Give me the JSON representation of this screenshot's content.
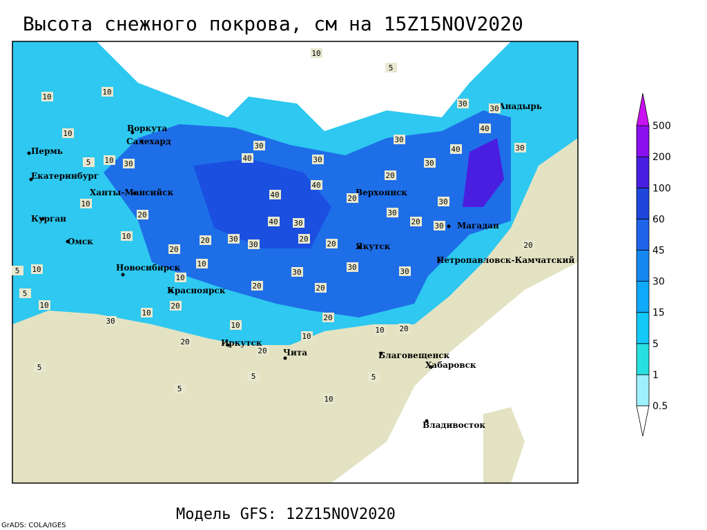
{
  "title": "Высота снежного покрова, см на 15Z15NOV2020",
  "subtitle": "Модель GFS: 12Z15NOV2020",
  "credit": "GrADS: COLA/IGES",
  "legend": {
    "levels": [
      0.5,
      1,
      5,
      15,
      30,
      45,
      60,
      100,
      200,
      500
    ],
    "colors": [
      "#ffffff",
      "#9ef0ff",
      "#28e0e0",
      "#14c8f8",
      "#10a8f8",
      "#1488f0",
      "#1e64e8",
      "#1e46dc",
      "#4a1ee0",
      "#8a10f0",
      "#c812f0"
    ]
  },
  "cities": [
    "Воркута",
    "Салехард",
    "Пермь",
    "Екатеринбург",
    "Ханты-Мансийск",
    "Курган",
    "Омск",
    "Новосибирск",
    "Красноярск",
    "Иркутск",
    "Чита",
    "Верхоянск",
    "Якутск",
    "Магадан",
    "Петропавловск-Камчатский",
    "Анадырь",
    "Благовещенск",
    "Хабаровск",
    "Владивосток"
  ],
  "contour_labels": [
    10,
    5,
    10,
    10,
    10,
    30,
    10,
    5,
    10,
    20,
    10,
    10,
    5,
    10,
    5,
    30,
    40,
    40,
    40,
    30,
    40,
    30,
    30,
    30,
    20,
    20,
    20,
    20,
    30,
    30,
    40,
    40,
    30,
    30,
    30,
    20,
    30,
    30,
    30,
    30,
    20,
    10,
    20,
    20,
    10,
    20,
    20,
    30,
    10,
    20,
    10,
    20,
    10,
    5,
    5,
    10,
    5,
    10,
    20,
    20,
    30,
    20,
    30,
    5
  ]
}
